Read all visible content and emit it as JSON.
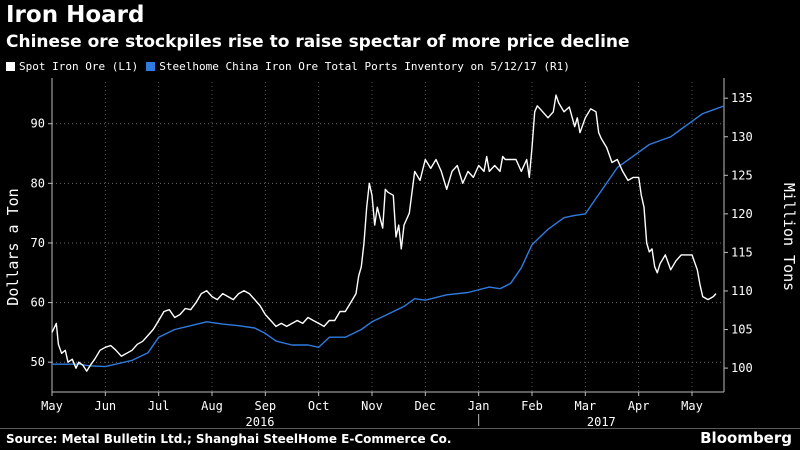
{
  "title": "Iron Hoard",
  "subtitle": "Chinese ore stockpiles rise to raise spectar of more price decline",
  "legend": {
    "items": [
      {
        "label": "Spot Iron Ore (L1)",
        "color": "#ffffff"
      },
      {
        "label": "Steelhome China Iron Ore Total Ports Inventory  on 5/12/17 (R1)",
        "color": "#2f7be0"
      }
    ]
  },
  "source": "Source: Metal Bulletin Ltd.; Shanghai SteelHome E-Commerce Co.",
  "brand": "Bloomberg",
  "chart_data": {
    "type": "line",
    "x_unit": "months since May 1, 2016",
    "xlim": [
      0,
      12.6
    ],
    "months": [
      {
        "label": "May",
        "x": 0
      },
      {
        "label": "Jun",
        "x": 1
      },
      {
        "label": "Jul",
        "x": 2
      },
      {
        "label": "Aug",
        "x": 3
      },
      {
        "label": "Sep",
        "x": 4
      },
      {
        "label": "Oct",
        "x": 5
      },
      {
        "label": "Nov",
        "x": 6
      },
      {
        "label": "Dec",
        "x": 7
      },
      {
        "label": "Jan",
        "x": 8
      },
      {
        "label": "Feb",
        "x": 9
      },
      {
        "label": "Mar",
        "x": 10
      },
      {
        "label": "Apr",
        "x": 11
      },
      {
        "label": "May",
        "x": 12
      }
    ],
    "years": [
      {
        "label": "2016",
        "x_center": 3.9
      },
      {
        "label": "2017",
        "x_center": 10.3
      }
    ],
    "year_divider_x": 8.0,
    "left_axis": {
      "label": "Dollars a Ton",
      "ticks": [
        50,
        60,
        70,
        80,
        90
      ],
      "ylim": [
        45,
        97
      ]
    },
    "right_axis": {
      "label": "Million Tons",
      "ticks": [
        100,
        105,
        110,
        115,
        120,
        125,
        130,
        135
      ],
      "ylim": [
        96.9,
        137.1
      ]
    },
    "series": [
      {
        "name": "Spot Iron Ore (L1)",
        "axis": "left",
        "color": "#ffffff",
        "points": [
          [
            0.0,
            55.0
          ],
          [
            0.08,
            56.5
          ],
          [
            0.12,
            53.0
          ],
          [
            0.18,
            51.5
          ],
          [
            0.25,
            52.0
          ],
          [
            0.3,
            50.0
          ],
          [
            0.38,
            50.5
          ],
          [
            0.45,
            49.0
          ],
          [
            0.5,
            50.0
          ],
          [
            0.58,
            49.5
          ],
          [
            0.65,
            48.5
          ],
          [
            0.72,
            49.5
          ],
          [
            0.8,
            50.5
          ],
          [
            0.9,
            52.0
          ],
          [
            1.0,
            52.5
          ],
          [
            1.1,
            52.8
          ],
          [
            1.2,
            52.0
          ],
          [
            1.3,
            51.0
          ],
          [
            1.4,
            51.5
          ],
          [
            1.5,
            52.0
          ],
          [
            1.6,
            53.0
          ],
          [
            1.7,
            53.5
          ],
          [
            1.8,
            54.5
          ],
          [
            1.9,
            55.5
          ],
          [
            2.0,
            57.0
          ],
          [
            2.1,
            58.5
          ],
          [
            2.2,
            58.8
          ],
          [
            2.3,
            57.5
          ],
          [
            2.4,
            58.0
          ],
          [
            2.5,
            59.0
          ],
          [
            2.6,
            58.8
          ],
          [
            2.7,
            60.0
          ],
          [
            2.8,
            61.5
          ],
          [
            2.9,
            62.0
          ],
          [
            3.0,
            61.0
          ],
          [
            3.1,
            60.5
          ],
          [
            3.2,
            61.5
          ],
          [
            3.3,
            61.0
          ],
          [
            3.4,
            60.5
          ],
          [
            3.5,
            61.5
          ],
          [
            3.6,
            62.0
          ],
          [
            3.7,
            61.5
          ],
          [
            3.8,
            60.5
          ],
          [
            3.9,
            59.5
          ],
          [
            4.0,
            58.0
          ],
          [
            4.1,
            57.0
          ],
          [
            4.2,
            56.0
          ],
          [
            4.3,
            56.5
          ],
          [
            4.4,
            56.0
          ],
          [
            4.5,
            56.5
          ],
          [
            4.6,
            57.0
          ],
          [
            4.7,
            56.5
          ],
          [
            4.8,
            57.5
          ],
          [
            4.9,
            57.0
          ],
          [
            5.0,
            56.5
          ],
          [
            5.1,
            56.0
          ],
          [
            5.2,
            57.0
          ],
          [
            5.3,
            57.0
          ],
          [
            5.4,
            58.5
          ],
          [
            5.5,
            58.5
          ],
          [
            5.6,
            60.0
          ],
          [
            5.7,
            61.5
          ],
          [
            5.75,
            64.5
          ],
          [
            5.8,
            66.0
          ],
          [
            5.85,
            70.0
          ],
          [
            5.9,
            76.0
          ],
          [
            5.95,
            80.0
          ],
          [
            6.0,
            78.0
          ],
          [
            6.05,
            73.0
          ],
          [
            6.1,
            76.0
          ],
          [
            6.2,
            72.5
          ],
          [
            6.25,
            79.0
          ],
          [
            6.3,
            78.5
          ],
          [
            6.4,
            78.0
          ],
          [
            6.45,
            71.0
          ],
          [
            6.5,
            73.0
          ],
          [
            6.55,
            69.0
          ],
          [
            6.6,
            73.0
          ],
          [
            6.7,
            75.0
          ],
          [
            6.8,
            82.0
          ],
          [
            6.9,
            80.5
          ],
          [
            7.0,
            84.0
          ],
          [
            7.1,
            82.5
          ],
          [
            7.2,
            84.0
          ],
          [
            7.3,
            82.0
          ],
          [
            7.4,
            79.0
          ],
          [
            7.5,
            82.0
          ],
          [
            7.6,
            83.0
          ],
          [
            7.7,
            80.0
          ],
          [
            7.8,
            82.0
          ],
          [
            7.9,
            81.0
          ],
          [
            8.0,
            83.0
          ],
          [
            8.1,
            82.0
          ],
          [
            8.15,
            84.5
          ],
          [
            8.2,
            82.0
          ],
          [
            8.3,
            83.0
          ],
          [
            8.4,
            82.0
          ],
          [
            8.45,
            84.5
          ],
          [
            8.5,
            84.0
          ],
          [
            8.6,
            84.0
          ],
          [
            8.7,
            84.0
          ],
          [
            8.8,
            82.0
          ],
          [
            8.9,
            84.0
          ],
          [
            8.95,
            81.0
          ],
          [
            9.0,
            86.0
          ],
          [
            9.05,
            92.0
          ],
          [
            9.1,
            93.0
          ],
          [
            9.2,
            92.0
          ],
          [
            9.3,
            91.0
          ],
          [
            9.4,
            92.0
          ],
          [
            9.45,
            94.8
          ],
          [
            9.5,
            93.5
          ],
          [
            9.6,
            92.0
          ],
          [
            9.7,
            92.8
          ],
          [
            9.8,
            89.5
          ],
          [
            9.85,
            91.0
          ],
          [
            9.9,
            88.5
          ],
          [
            10.0,
            91.0
          ],
          [
            10.1,
            92.5
          ],
          [
            10.2,
            92.0
          ],
          [
            10.25,
            88.5
          ],
          [
            10.3,
            87.5
          ],
          [
            10.4,
            86.0
          ],
          [
            10.5,
            83.5
          ],
          [
            10.6,
            84.0
          ],
          [
            10.7,
            82.0
          ],
          [
            10.8,
            80.5
          ],
          [
            10.9,
            81.0
          ],
          [
            11.0,
            81.0
          ],
          [
            11.05,
            78.0
          ],
          [
            11.1,
            76.0
          ],
          [
            11.15,
            70.0
          ],
          [
            11.2,
            68.5
          ],
          [
            11.25,
            69.0
          ],
          [
            11.3,
            66.0
          ],
          [
            11.35,
            65.0
          ],
          [
            11.4,
            66.5
          ],
          [
            11.5,
            68.0
          ],
          [
            11.6,
            65.5
          ],
          [
            11.7,
            67.0
          ],
          [
            11.8,
            68.0
          ],
          [
            11.9,
            68.0
          ],
          [
            12.0,
            68.0
          ],
          [
            12.1,
            65.5
          ],
          [
            12.15,
            63.0
          ],
          [
            12.2,
            61.0
          ],
          [
            12.3,
            60.5
          ],
          [
            12.4,
            61.0
          ],
          [
            12.45,
            61.5
          ]
        ]
      },
      {
        "name": "Steelhome China Iron Ore Total Ports Inventory on 5/12/17 (R1)",
        "axis": "right",
        "color": "#2f7be0",
        "points": [
          [
            0.0,
            100.5
          ],
          [
            0.5,
            100.5
          ],
          [
            0.7,
            100.3
          ],
          [
            1.0,
            100.2
          ],
          [
            1.5,
            101.0
          ],
          [
            1.8,
            102.0
          ],
          [
            2.0,
            104.0
          ],
          [
            2.3,
            105.0
          ],
          [
            2.6,
            105.5
          ],
          [
            2.9,
            106.0
          ],
          [
            3.2,
            105.7
          ],
          [
            3.5,
            105.5
          ],
          [
            3.8,
            105.2
          ],
          [
            4.0,
            104.5
          ],
          [
            4.2,
            103.5
          ],
          [
            4.5,
            103.0
          ],
          [
            4.8,
            103.0
          ],
          [
            5.0,
            102.7
          ],
          [
            5.2,
            104.0
          ],
          [
            5.5,
            104.0
          ],
          [
            5.8,
            105.0
          ],
          [
            6.0,
            106.0
          ],
          [
            6.3,
            107.0
          ],
          [
            6.6,
            108.0
          ],
          [
            6.8,
            109.0
          ],
          [
            7.0,
            108.8
          ],
          [
            7.4,
            109.5
          ],
          [
            7.8,
            109.8
          ],
          [
            8.2,
            110.5
          ],
          [
            8.4,
            110.3
          ],
          [
            8.6,
            111.0
          ],
          [
            8.8,
            113.0
          ],
          [
            9.0,
            116.0
          ],
          [
            9.3,
            118.0
          ],
          [
            9.6,
            119.5
          ],
          [
            9.8,
            119.8
          ],
          [
            10.0,
            120.0
          ],
          [
            10.2,
            122.0
          ],
          [
            10.4,
            124.0
          ],
          [
            10.6,
            126.0
          ],
          [
            10.8,
            127.0
          ],
          [
            11.0,
            128.0
          ],
          [
            11.2,
            129.0
          ],
          [
            11.4,
            129.5
          ],
          [
            11.6,
            130.0
          ],
          [
            11.8,
            131.0
          ],
          [
            12.0,
            132.0
          ],
          [
            12.2,
            133.0
          ],
          [
            12.4,
            133.5
          ],
          [
            12.6,
            134.0
          ]
        ]
      }
    ]
  }
}
